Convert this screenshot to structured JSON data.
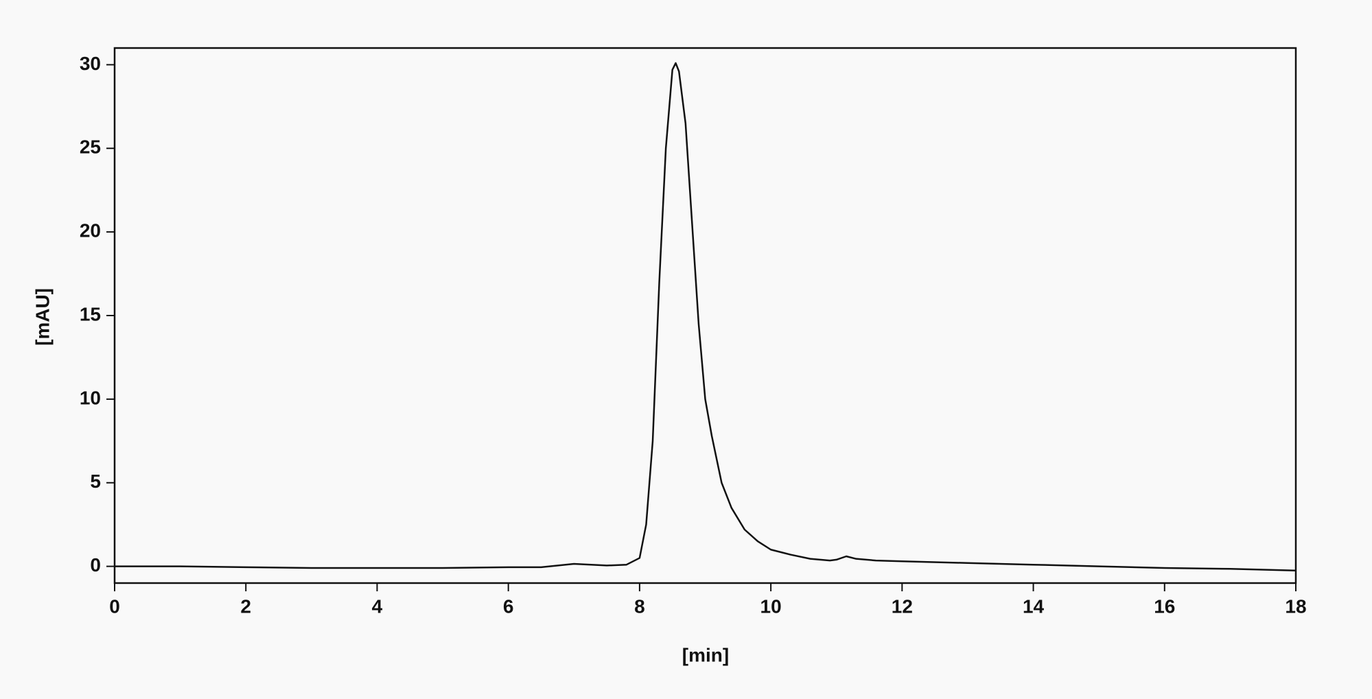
{
  "chart_data": {
    "type": "line",
    "x_label": "[min]",
    "y_label": "[mAU]",
    "x": [
      0,
      1,
      2,
      3,
      4,
      5,
      6,
      6.5,
      7.0,
      7.5,
      7.8,
      8.0,
      8.1,
      8.2,
      8.3,
      8.4,
      8.5,
      8.55,
      8.6,
      8.7,
      8.8,
      8.9,
      9.0,
      9.1,
      9.25,
      9.4,
      9.6,
      9.8,
      10.0,
      10.3,
      10.6,
      10.9,
      11.0,
      11.15,
      11.3,
      11.6,
      12,
      13,
      14,
      15,
      16,
      17,
      18
    ],
    "series": [
      {
        "color": "#111111",
        "values": [
          0.0,
          0.0,
          -0.05,
          -0.1,
          -0.1,
          -0.1,
          -0.05,
          -0.05,
          0.15,
          0.05,
          0.1,
          0.5,
          2.5,
          7.5,
          17,
          25,
          29.7,
          30.1,
          29.6,
          26.5,
          20.5,
          14.5,
          10.0,
          7.8,
          5.0,
          3.5,
          2.2,
          1.5,
          1.0,
          0.7,
          0.45,
          0.35,
          0.4,
          0.6,
          0.45,
          0.35,
          0.3,
          0.2,
          0.1,
          0.0,
          -0.1,
          -0.15,
          -0.25
        ]
      }
    ],
    "xlim": [
      0,
      18
    ],
    "xticks": [
      0,
      2,
      4,
      6,
      8,
      10,
      12,
      14,
      16,
      18
    ],
    "ylim": [
      -1,
      31
    ],
    "yticks": [
      0,
      5,
      10,
      15,
      20,
      25,
      30
    ]
  }
}
